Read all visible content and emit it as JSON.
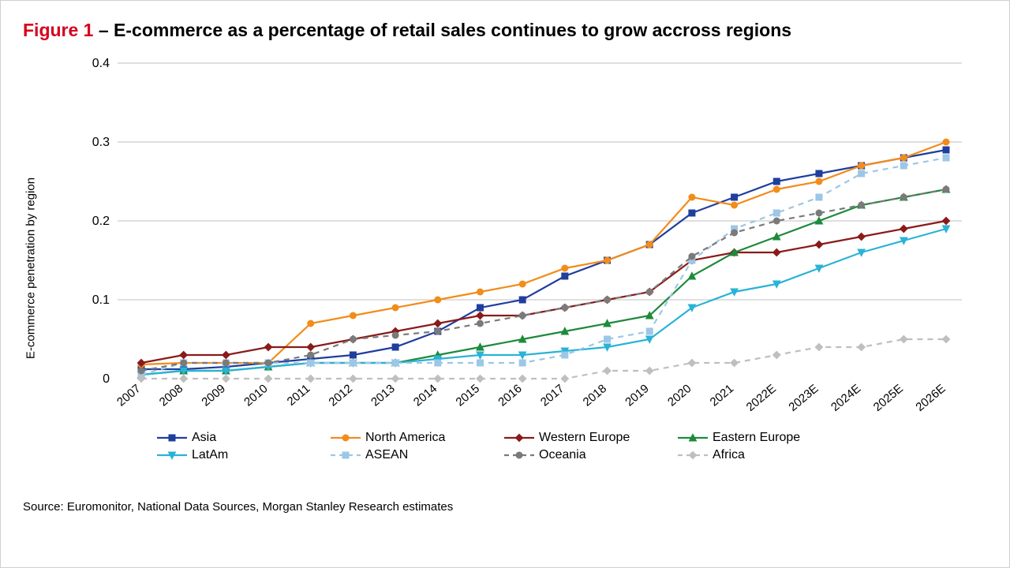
{
  "title_prefix": "Figure 1",
  "title_sep": " – ",
  "title_text": "E-commerce as a percentage of retail sales continues to grow accross regions",
  "ylabel": "E-commerce penetration by region",
  "source": "Source: Euromonitor, National Data Sources, Morgan Stanley Research estimates",
  "chart": {
    "type": "line",
    "background_color": "#ffffff",
    "grid_color": "#808080",
    "grid_width": 0.6,
    "axis_color": "#000000",
    "xlabels": [
      "2007",
      "2008",
      "2009",
      "2010",
      "2011",
      "2012",
      "2013",
      "2014",
      "2015",
      "2016",
      "2017",
      "2018",
      "2019",
      "2020",
      "2021",
      "2022E",
      "2023E",
      "2024E",
      "2025E",
      "2026E"
    ],
    "ylim": [
      0,
      0.4
    ],
    "yticks": [
      0,
      0.1,
      0.2,
      0.3,
      0.4
    ],
    "ytick_labels": [
      "0",
      "0.1",
      "0.2",
      "0.3",
      "0.4"
    ],
    "line_width": 2.2,
    "marker_size": 4.5,
    "series": [
      {
        "name": "Asia",
        "color": "#1f3e9e",
        "marker": "square",
        "dash": "solid",
        "values": [
          0.012,
          0.012,
          0.015,
          0.02,
          0.025,
          0.03,
          0.04,
          0.06,
          0.09,
          0.1,
          0.13,
          0.15,
          0.17,
          0.21,
          0.23,
          0.25,
          0.26,
          0.27,
          0.28,
          0.29
        ]
      },
      {
        "name": "North America",
        "color": "#f28c1a",
        "marker": "circle",
        "dash": "solid",
        "values": [
          0.018,
          0.02,
          0.02,
          0.02,
          0.07,
          0.08,
          0.09,
          0.1,
          0.11,
          0.12,
          0.14,
          0.15,
          0.17,
          0.23,
          0.22,
          0.24,
          0.25,
          0.27,
          0.28,
          0.3
        ]
      },
      {
        "name": "Western Europe",
        "color": "#8b1a1a",
        "marker": "diamond",
        "dash": "solid",
        "values": [
          0.02,
          0.03,
          0.03,
          0.04,
          0.04,
          0.05,
          0.06,
          0.07,
          0.08,
          0.08,
          0.09,
          0.1,
          0.11,
          0.15,
          0.16,
          0.16,
          0.17,
          0.18,
          0.19,
          0.2
        ]
      },
      {
        "name": "Eastern Europe",
        "color": "#1e8a3b",
        "marker": "triangle",
        "dash": "solid",
        "values": [
          0.005,
          0.01,
          0.01,
          0.015,
          0.02,
          0.02,
          0.02,
          0.03,
          0.04,
          0.05,
          0.06,
          0.07,
          0.08,
          0.13,
          0.16,
          0.18,
          0.2,
          0.22,
          0.23,
          0.24
        ]
      },
      {
        "name": "LatAm",
        "color": "#29b3d6",
        "marker": "triangle-down",
        "dash": "solid",
        "values": [
          0.005,
          0.01,
          0.01,
          0.015,
          0.02,
          0.02,
          0.02,
          0.025,
          0.03,
          0.03,
          0.035,
          0.04,
          0.05,
          0.09,
          0.11,
          0.12,
          0.14,
          0.16,
          0.175,
          0.19
        ]
      },
      {
        "name": "ASEAN",
        "color": "#9cc7e6",
        "marker": "square",
        "dash": "dashed",
        "values": [
          0.005,
          0.02,
          0.02,
          0.02,
          0.02,
          0.02,
          0.02,
          0.02,
          0.02,
          0.02,
          0.03,
          0.05,
          0.06,
          0.15,
          0.19,
          0.21,
          0.23,
          0.26,
          0.27,
          0.28
        ]
      },
      {
        "name": "Oceania",
        "color": "#7a7a7a",
        "marker": "circle",
        "dash": "dashed",
        "values": [
          0.01,
          0.02,
          0.02,
          0.02,
          0.03,
          0.05,
          0.055,
          0.06,
          0.07,
          0.08,
          0.09,
          0.1,
          0.11,
          0.155,
          0.185,
          0.2,
          0.21,
          0.22,
          0.23,
          0.24
        ]
      },
      {
        "name": "Africa",
        "color": "#bfbfbf",
        "marker": "diamond",
        "dash": "dashed",
        "values": [
          0.0,
          0.0,
          0.0,
          0.0,
          0.0,
          0.0,
          0.0,
          0.0,
          0.0,
          0.0,
          0.0,
          0.01,
          0.01,
          0.02,
          0.02,
          0.03,
          0.04,
          0.04,
          0.05,
          0.05
        ]
      }
    ],
    "legend_cols": 4
  }
}
